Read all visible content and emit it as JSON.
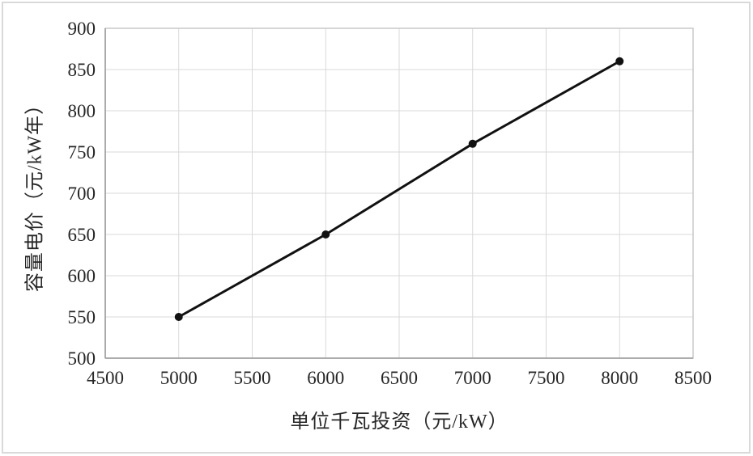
{
  "figure": {
    "background": "#ffffff",
    "frame_border_color": "#d9d9d9"
  },
  "chart_data": {
    "type": "line",
    "title": "",
    "xlabel": "单位千瓦投资（元/kW）",
    "ylabel": "容量电价（元/kW年）",
    "x": [
      5000,
      6000,
      7000,
      8000
    ],
    "series": [
      {
        "name": "容量电价",
        "values": [
          550,
          650,
          760,
          860
        ]
      }
    ],
    "xlim": [
      4500,
      8500
    ],
    "ylim": [
      500,
      900
    ],
    "x_ticks": [
      4500,
      5000,
      5500,
      6000,
      6500,
      7000,
      7500,
      8000,
      8500
    ],
    "y_ticks": [
      500,
      550,
      600,
      650,
      700,
      750,
      800,
      850,
      900
    ],
    "grid": "both",
    "legend_position": "none",
    "line_color": "#111111",
    "marker": "filled-circle",
    "marker_color": "#111111",
    "gridline_color": "#d9d9d9",
    "plot_border_color": "#c9c9c9",
    "axis_line_color": "#9a9a9a",
    "text_color": "#262626"
  }
}
